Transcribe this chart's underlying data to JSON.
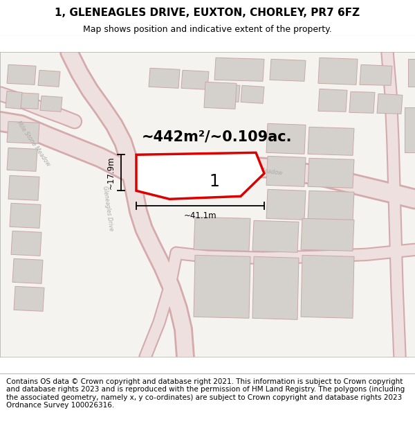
{
  "title": "1, GLENEAGLES DRIVE, EUXTON, CHORLEY, PR7 6FZ",
  "subtitle": "Map shows position and indicative extent of the property.",
  "footer": "Contains OS data © Crown copyright and database right 2021. This information is subject to Crown copyright and database rights 2023 and is reproduced with the permission of HM Land Registry. The polygons (including the associated geometry, namely x, y co-ordinates) are subject to Crown copyright and database rights 2023 Ordnance Survey 100026316.",
  "bg_color": "#f5f3f0",
  "road_color": "#e8c8c8",
  "road_outline": "#d4aaaa",
  "building_fill": "#d4d0cc",
  "building_edge": "#c8a8a8",
  "highlight_fill": "#ffffff",
  "highlight_edge": "#dd0000",
  "dim_color": "#000000",
  "area_text": "~442m²/~0.109ac.",
  "width_text": "~41.1m",
  "height_text": "~17.9m",
  "plot_number": "1",
  "title_fontsize": 11,
  "subtitle_fontsize": 9,
  "footer_fontsize": 7.5,
  "area_fontsize": 15
}
